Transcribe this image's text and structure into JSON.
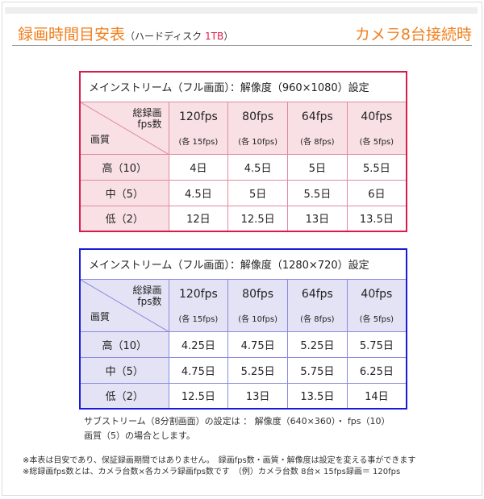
{
  "header": {
    "title": "録画時間目安表",
    "subtitle_pre": "（ハードディスク ",
    "subtitle_red": "1TB",
    "subtitle_post": "）",
    "right": "カメラ8台接続時"
  },
  "tables": [
    {
      "caption": "メインストリーム（フル画面）：解像度（960×1080）設定",
      "corner_top": "総録画\nfps数",
      "corner_bottom": "画質",
      "columns": [
        {
          "fps": "120fps",
          "each": "(各 15fps)"
        },
        {
          "fps": "80fps",
          "each": "(各 10fps)"
        },
        {
          "fps": "64fps",
          "each": "(各 8fps)"
        },
        {
          "fps": "40fps",
          "each": "(各 5fps)"
        }
      ],
      "rows": [
        {
          "label": "高（10）",
          "values": [
            "4日",
            "4.5日",
            "5日",
            "5.5日"
          ]
        },
        {
          "label": "中（5）",
          "values": [
            "4.5日",
            "5日",
            "5.5日",
            "6日"
          ]
        },
        {
          "label": "低（2）",
          "values": [
            "12日",
            "12.5日",
            "13日",
            "13.5日"
          ]
        }
      ]
    },
    {
      "caption": "メインストリーム（フル画面）：解像度（1280×720）設定",
      "corner_top": "総録画\nfps数",
      "corner_bottom": "画質",
      "columns": [
        {
          "fps": "120fps",
          "each": "(各 15fps)"
        },
        {
          "fps": "80fps",
          "each": "(各 10fps)"
        },
        {
          "fps": "64fps",
          "each": "(各 8fps)"
        },
        {
          "fps": "40fps",
          "each": "(各 5fps)"
        }
      ],
      "rows": [
        {
          "label": "高（10）",
          "values": [
            "4.25日",
            "4.75日",
            "5.25日",
            "5.75日"
          ]
        },
        {
          "label": "中（5）",
          "values": [
            "4.75日",
            "5.25日",
            "5.75日",
            "6.25日"
          ]
        },
        {
          "label": "低（2）",
          "values": [
            "12.5日",
            "13日",
            "13.5日",
            "14日"
          ]
        }
      ]
    }
  ],
  "notes": [
    "サブストリーム（8分割画面）の設定は ： 解像度（640×360）・ fps（10）",
    "画質（5）の場合とします。"
  ],
  "footnotes": [
    "※本表は目安であり、保証録画期間ではありません。　録画fps数・画質・解像度は設定を変える事ができます",
    "※総録画fps数とは、カメラ台数×各カメラ録画fps数です　（例）カメラ台数 8台× 15fps録画＝ 120fps"
  ],
  "colors": {
    "accent": "#f07f1e",
    "table1": "#d81b4a",
    "table2": "#1a1adb"
  }
}
